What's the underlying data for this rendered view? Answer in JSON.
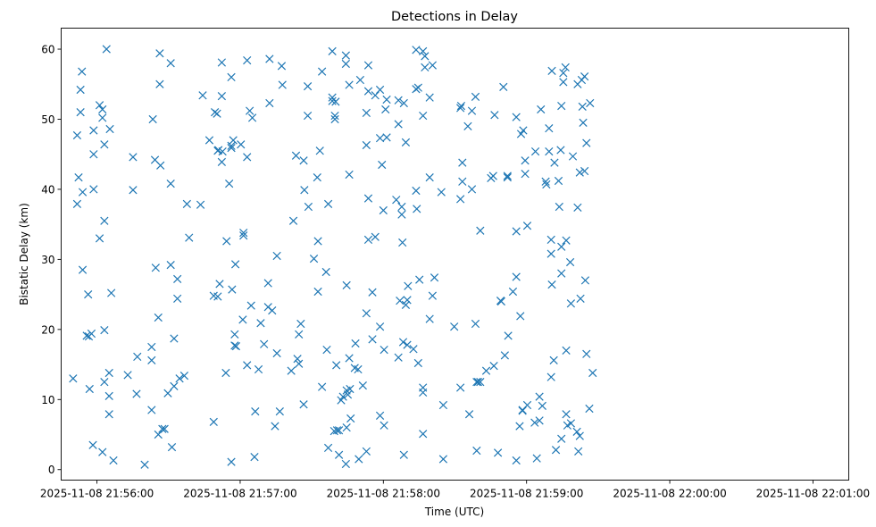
{
  "chart_data": {
    "type": "scatter",
    "title": "Detections in Delay",
    "xlabel": "Time (UTC)",
    "ylabel": "Bistatic Delay (km)",
    "marker": "x",
    "color": "#1f77b4",
    "grid": false,
    "legend": "none",
    "x_range": [
      "2025-11-08 21:55:45",
      "2025-11-08 22:01:15"
    ],
    "xlim": [
      -15,
      315
    ],
    "ylim": [
      -1.5,
      63
    ],
    "x_ticks": [
      {
        "value": 0,
        "label": "2025-11-08 21:56:00"
      },
      {
        "value": 60,
        "label": "2025-11-08 21:57:00"
      },
      {
        "value": 120,
        "label": "2025-11-08 21:58:00"
      },
      {
        "value": 180,
        "label": "2025-11-08 21:59:00"
      },
      {
        "value": 240,
        "label": "2025-11-08 22:00:00"
      },
      {
        "value": 300,
        "label": "2025-11-08 22:01:00"
      }
    ],
    "y_ticks": [
      {
        "value": 0,
        "label": "0"
      },
      {
        "value": 10,
        "label": "10"
      },
      {
        "value": 20,
        "label": "20"
      },
      {
        "value": 30,
        "label": "30"
      },
      {
        "value": 40,
        "label": "40"
      },
      {
        "value": 50,
        "label": "50"
      },
      {
        "value": 60,
        "label": "60"
      }
    ],
    "points": [
      [
        -10.0,
        13.0
      ],
      [
        -8.3,
        47.7
      ],
      [
        -8.3,
        37.9
      ],
      [
        -7.7,
        41.7
      ],
      [
        -6.9,
        54.2
      ],
      [
        -6.9,
        51.0
      ],
      [
        -6.3,
        56.8
      ],
      [
        -6.0,
        39.6
      ],
      [
        -6.0,
        28.5
      ],
      [
        -4.3,
        19.1
      ],
      [
        -3.7,
        25.0
      ],
      [
        -3.4,
        19.0
      ],
      [
        -3.1,
        11.5
      ],
      [
        -2.3,
        19.4
      ],
      [
        -1.7,
        3.5
      ],
      [
        -1.4,
        48.4
      ],
      [
        -1.4,
        45.0
      ],
      [
        -1.4,
        40.0
      ],
      [
        1.1,
        33.0
      ],
      [
        1.1,
        52.0
      ],
      [
        2.3,
        2.5
      ],
      [
        2.3,
        51.4
      ],
      [
        2.3,
        50.2
      ],
      [
        3.1,
        46.4
      ],
      [
        3.1,
        35.5
      ],
      [
        3.1,
        19.9
      ],
      [
        3.1,
        12.5
      ],
      [
        4.0,
        60.0
      ],
      [
        5.1,
        13.8
      ],
      [
        5.1,
        10.5
      ],
      [
        5.1,
        7.9
      ],
      [
        5.4,
        48.6
      ],
      [
        6.0,
        25.2
      ],
      [
        6.9,
        1.3
      ],
      [
        12.9,
        13.5
      ],
      [
        15.1,
        44.6
      ],
      [
        15.1,
        39.9
      ],
      [
        16.6,
        10.8
      ],
      [
        16.9,
        16.1
      ],
      [
        20.0,
        0.7
      ],
      [
        22.9,
        8.5
      ],
      [
        22.9,
        15.6
      ],
      [
        22.9,
        17.5
      ],
      [
        23.4,
        50.0
      ],
      [
        24.3,
        44.2
      ],
      [
        24.6,
        28.8
      ],
      [
        25.7,
        21.7
      ],
      [
        25.7,
        5.0
      ],
      [
        26.3,
        59.4
      ],
      [
        26.3,
        55.0
      ],
      [
        26.6,
        43.4
      ],
      [
        27.4,
        5.8
      ],
      [
        28.3,
        5.8
      ],
      [
        29.7,
        10.9
      ],
      [
        30.9,
        58.0
      ],
      [
        30.9,
        40.8
      ],
      [
        30.9,
        29.2
      ],
      [
        31.4,
        3.2
      ],
      [
        32.3,
        11.9
      ],
      [
        32.3,
        18.7
      ],
      [
        33.7,
        27.2
      ],
      [
        33.7,
        24.4
      ],
      [
        34.6,
        13.0
      ],
      [
        36.6,
        13.4
      ],
      [
        37.7,
        37.9
      ],
      [
        38.6,
        33.1
      ],
      [
        43.4,
        37.8
      ],
      [
        44.3,
        53.4
      ],
      [
        47.1,
        47.0
      ],
      [
        48.9,
        6.8
      ],
      [
        48.9,
        24.8
      ],
      [
        49.4,
        51.0
      ],
      [
        50.3,
        50.8
      ],
      [
        50.6,
        45.5
      ],
      [
        50.6,
        24.7
      ],
      [
        50.9,
        45.6
      ],
      [
        51.4,
        26.5
      ],
      [
        52.3,
        58.1
      ],
      [
        52.3,
        53.3
      ],
      [
        52.3,
        43.9
      ],
      [
        52.6,
        45.4
      ],
      [
        54.0,
        13.8
      ],
      [
        54.3,
        32.6
      ],
      [
        55.4,
        40.8
      ],
      [
        56.3,
        56.0
      ],
      [
        56.3,
        1.1
      ],
      [
        56.3,
        46.2
      ],
      [
        56.3,
        45.9
      ],
      [
        56.6,
        25.7
      ],
      [
        57.1,
        47.0
      ],
      [
        57.7,
        19.3
      ],
      [
        57.7,
        17.7
      ],
      [
        58.0,
        29.3
      ],
      [
        58.3,
        17.6
      ],
      [
        60.3,
        46.4
      ],
      [
        61.1,
        21.4
      ],
      [
        61.4,
        33.8
      ],
      [
        61.4,
        33.4
      ],
      [
        62.9,
        44.6
      ],
      [
        62.9,
        58.4
      ],
      [
        62.9,
        14.9
      ],
      [
        64.0,
        51.2
      ],
      [
        64.6,
        23.4
      ],
      [
        65.1,
        50.2
      ],
      [
        66.0,
        1.8
      ],
      [
        66.3,
        8.3
      ],
      [
        67.7,
        14.3
      ],
      [
        68.6,
        20.9
      ],
      [
        70.0,
        17.9
      ],
      [
        71.7,
        23.2
      ],
      [
        71.7,
        26.6
      ],
      [
        72.3,
        58.6
      ],
      [
        72.3,
        52.3
      ],
      [
        73.4,
        22.7
      ],
      [
        74.6,
        6.2
      ],
      [
        75.4,
        16.6
      ],
      [
        75.4,
        30.5
      ],
      [
        76.6,
        8.3
      ],
      [
        77.4,
        57.6
      ],
      [
        77.7,
        54.9
      ],
      [
        81.4,
        14.1
      ],
      [
        82.3,
        35.5
      ],
      [
        83.4,
        44.8
      ],
      [
        84.0,
        15.8
      ],
      [
        84.6,
        19.3
      ],
      [
        84.6,
        15.1
      ],
      [
        85.4,
        20.8
      ],
      [
        86.6,
        9.3
      ],
      [
        86.6,
        44.1
      ],
      [
        86.9,
        39.9
      ],
      [
        88.3,
        54.7
      ],
      [
        88.3,
        50.5
      ],
      [
        88.6,
        37.5
      ],
      [
        90.9,
        30.1
      ],
      [
        92.3,
        41.7
      ],
      [
        92.6,
        32.6
      ],
      [
        92.6,
        25.4
      ],
      [
        93.4,
        45.5
      ],
      [
        94.3,
        11.8
      ],
      [
        94.3,
        56.8
      ],
      [
        96.0,
        28.2
      ],
      [
        96.3,
        17.1
      ],
      [
        96.9,
        37.9
      ],
      [
        96.9,
        3.1
      ],
      [
        98.6,
        52.6
      ],
      [
        98.6,
        53.1
      ],
      [
        98.6,
        59.7
      ],
      [
        99.4,
        5.5
      ],
      [
        99.7,
        50.0
      ],
      [
        99.7,
        50.5
      ],
      [
        100.0,
        52.5
      ],
      [
        100.3,
        14.9
      ],
      [
        100.6,
        5.6
      ],
      [
        101.4,
        2.1
      ],
      [
        101.4,
        5.6
      ],
      [
        102.3,
        9.9
      ],
      [
        103.1,
        10.4
      ],
      [
        104.3,
        0.8
      ],
      [
        104.3,
        59.1
      ],
      [
        104.3,
        57.9
      ],
      [
        104.6,
        26.3
      ],
      [
        104.6,
        11.3
      ],
      [
        104.6,
        6.0
      ],
      [
        105.1,
        10.7
      ],
      [
        105.7,
        15.9
      ],
      [
        105.7,
        54.9
      ],
      [
        105.7,
        42.1
      ],
      [
        106.0,
        11.5
      ],
      [
        106.3,
        7.3
      ],
      [
        108.0,
        14.5
      ],
      [
        108.3,
        18.0
      ],
      [
        109.4,
        14.3
      ],
      [
        109.7,
        1.5
      ],
      [
        110.3,
        55.6
      ],
      [
        111.4,
        12.0
      ],
      [
        112.9,
        46.3
      ],
      [
        112.9,
        50.9
      ],
      [
        112.9,
        22.3
      ],
      [
        112.9,
        2.6
      ],
      [
        113.7,
        38.7
      ],
      [
        113.7,
        32.8
      ],
      [
        113.7,
        57.7
      ],
      [
        113.7,
        54.0
      ],
      [
        115.4,
        25.3
      ],
      [
        115.4,
        18.6
      ],
      [
        116.6,
        53.4
      ],
      [
        116.6,
        33.2
      ],
      [
        118.6,
        54.2
      ],
      [
        118.6,
        47.3
      ],
      [
        118.6,
        20.4
      ],
      [
        118.6,
        7.7
      ],
      [
        119.4,
        43.5
      ],
      [
        120.0,
        37.0
      ],
      [
        120.3,
        6.3
      ],
      [
        120.3,
        17.1
      ],
      [
        120.9,
        51.4
      ],
      [
        121.4,
        52.8
      ],
      [
        121.4,
        47.4
      ],
      [
        125.4,
        38.5
      ],
      [
        126.3,
        52.7
      ],
      [
        126.3,
        49.3
      ],
      [
        126.3,
        16.0
      ],
      [
        126.9,
        24.1
      ],
      [
        127.7,
        37.5
      ],
      [
        127.7,
        36.4
      ],
      [
        128.0,
        32.4
      ],
      [
        128.3,
        18.2
      ],
      [
        128.6,
        2.1
      ],
      [
        128.6,
        52.3
      ],
      [
        129.4,
        46.7
      ],
      [
        129.4,
        23.5
      ],
      [
        130.0,
        17.8
      ],
      [
        130.0,
        24.2
      ],
      [
        130.3,
        26.2
      ],
      [
        132.6,
        17.2
      ],
      [
        133.7,
        59.9
      ],
      [
        133.7,
        54.3
      ],
      [
        133.7,
        39.8
      ],
      [
        134.0,
        37.2
      ],
      [
        134.6,
        54.5
      ],
      [
        134.6,
        15.2
      ],
      [
        135.1,
        27.1
      ],
      [
        136.6,
        59.7
      ],
      [
        136.6,
        50.5
      ],
      [
        136.6,
        11.0
      ],
      [
        136.6,
        11.7
      ],
      [
        136.6,
        5.1
      ],
      [
        137.4,
        57.4
      ],
      [
        137.4,
        59.0
      ],
      [
        139.4,
        21.5
      ],
      [
        139.4,
        41.7
      ],
      [
        139.4,
        53.1
      ],
      [
        140.6,
        57.7
      ],
      [
        140.6,
        24.8
      ],
      [
        141.4,
        27.4
      ],
      [
        144.3,
        39.6
      ],
      [
        145.1,
        9.2
      ],
      [
        145.1,
        1.5
      ],
      [
        149.7,
        20.4
      ],
      [
        152.3,
        38.6
      ],
      [
        152.3,
        51.6
      ],
      [
        152.3,
        11.7
      ],
      [
        152.6,
        51.9
      ],
      [
        153.1,
        43.8
      ],
      [
        153.1,
        41.1
      ],
      [
        155.4,
        49.0
      ],
      [
        156.0,
        7.9
      ],
      [
        157.1,
        51.2
      ],
      [
        157.1,
        40.0
      ],
      [
        158.6,
        53.2
      ],
      [
        158.6,
        20.8
      ],
      [
        159.1,
        2.7
      ],
      [
        159.1,
        12.5
      ],
      [
        159.7,
        12.5
      ],
      [
        160.6,
        12.5
      ],
      [
        160.6,
        34.1
      ],
      [
        163.1,
        14.1
      ],
      [
        165.1,
        41.6
      ],
      [
        166.0,
        41.9
      ],
      [
        166.3,
        14.8
      ],
      [
        166.6,
        50.6
      ],
      [
        168.0,
        2.4
      ],
      [
        169.1,
        24.1
      ],
      [
        169.4,
        24.0
      ],
      [
        170.3,
        54.6
      ],
      [
        170.9,
        16.3
      ],
      [
        172.0,
        41.9
      ],
      [
        172.0,
        41.7
      ],
      [
        172.3,
        19.1
      ],
      [
        174.3,
        25.4
      ],
      [
        175.7,
        50.3
      ],
      [
        175.7,
        27.5
      ],
      [
        175.7,
        34.0
      ],
      [
        175.7,
        1.3
      ],
      [
        177.1,
        6.2
      ],
      [
        177.4,
        21.9
      ],
      [
        177.7,
        47.9
      ],
      [
        178.3,
        8.5
      ],
      [
        178.3,
        8.4
      ],
      [
        178.6,
        48.4
      ],
      [
        179.4,
        42.2
      ],
      [
        179.4,
        44.1
      ],
      [
        180.3,
        34.8
      ],
      [
        180.3,
        9.2
      ],
      [
        183.4,
        6.7
      ],
      [
        183.7,
        45.4
      ],
      [
        184.3,
        1.6
      ],
      [
        185.4,
        10.4
      ],
      [
        185.4,
        7.0
      ],
      [
        186.0,
        51.4
      ],
      [
        186.6,
        9.1
      ],
      [
        188.0,
        41.1
      ],
      [
        188.3,
        40.7
      ],
      [
        189.4,
        48.7
      ],
      [
        189.4,
        45.4
      ],
      [
        190.3,
        13.2
      ],
      [
        190.3,
        32.8
      ],
      [
        190.3,
        30.8
      ],
      [
        190.6,
        56.9
      ],
      [
        190.6,
        26.4
      ],
      [
        191.4,
        15.6
      ],
      [
        191.7,
        43.8
      ],
      [
        192.3,
        2.8
      ],
      [
        193.4,
        41.2
      ],
      [
        193.7,
        37.5
      ],
      [
        194.3,
        45.6
      ],
      [
        194.6,
        31.8
      ],
      [
        194.6,
        51.9
      ],
      [
        194.6,
        28.0
      ],
      [
        194.6,
        4.4
      ],
      [
        195.4,
        55.3
      ],
      [
        195.4,
        56.6
      ],
      [
        196.3,
        57.4
      ],
      [
        196.6,
        32.7
      ],
      [
        196.6,
        17.0
      ],
      [
        196.6,
        7.9
      ],
      [
        197.1,
        6.3
      ],
      [
        198.3,
        29.6
      ],
      [
        198.6,
        23.7
      ],
      [
        198.6,
        6.6
      ],
      [
        199.4,
        44.7
      ],
      [
        201.1,
        5.4
      ],
      [
        201.4,
        37.4
      ],
      [
        201.4,
        55.0
      ],
      [
        201.7,
        2.6
      ],
      [
        202.3,
        4.8
      ],
      [
        202.3,
        42.4
      ],
      [
        202.6,
        24.4
      ],
      [
        203.1,
        55.6
      ],
      [
        203.4,
        51.8
      ],
      [
        203.7,
        49.5
      ],
      [
        204.3,
        42.6
      ],
      [
        204.3,
        56.1
      ],
      [
        204.6,
        27.0
      ],
      [
        205.1,
        46.6
      ],
      [
        205.1,
        16.5
      ],
      [
        206.3,
        8.7
      ],
      [
        206.6,
        52.3
      ],
      [
        207.7,
        13.8
      ]
    ]
  }
}
